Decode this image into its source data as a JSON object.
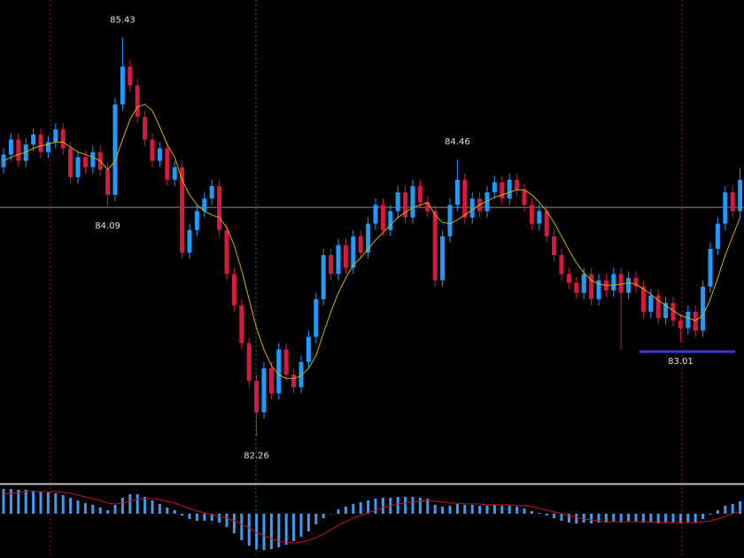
{
  "chart_data": {
    "type": "candlestick",
    "up_color": "#1e9bff",
    "down_color": "#d7193f",
    "ylim": [
      81.89,
      85.73
    ],
    "open": [
      84.4,
      84.5,
      84.62,
      84.45,
      84.58,
      84.66,
      84.52,
      84.6,
      84.7,
      84.55,
      84.32,
      84.48,
      84.4,
      84.52,
      84.38,
      84.18,
      84.9,
      85.2,
      85.05,
      84.8,
      84.62,
      84.45,
      84.55,
      84.3,
      84.4,
      83.72,
      83.9,
      84.05,
      84.15,
      84.25,
      83.9,
      83.55,
      83.3,
      83.0,
      82.7,
      82.45,
      82.8,
      82.6,
      82.95,
      82.75,
      82.65,
      82.85,
      83.05,
      83.35,
      83.7,
      83.55,
      83.78,
      83.6,
      83.85,
      83.72,
      83.95,
      84.1,
      83.9,
      84.05,
      84.2,
      84.0,
      84.25,
      84.12,
      84.05,
      83.5,
      83.85,
      84.1,
      84.3,
      84.0,
      84.15,
      84.05,
      84.2,
      84.28,
      84.15,
      84.3,
      84.22,
      84.1,
      83.95,
      84.05,
      83.85,
      83.7,
      83.55,
      83.48,
      83.4,
      83.55,
      83.35,
      83.5,
      83.42,
      83.55,
      83.4,
      83.52,
      83.45,
      83.25,
      83.38,
      83.2,
      83.32,
      83.18,
      83.12,
      83.25,
      83.1,
      83.45,
      83.75,
      83.95,
      84.2,
      84.05
    ],
    "high": [
      84.55,
      84.67,
      84.67,
      84.63,
      84.71,
      84.71,
      84.65,
      84.75,
      84.75,
      84.6,
      84.53,
      84.53,
      84.57,
      84.57,
      84.43,
      84.95,
      85.43,
      85.25,
      85.1,
      84.85,
      84.67,
      84.6,
      84.6,
      84.45,
      84.45,
      83.95,
      84.1,
      84.2,
      84.3,
      84.3,
      83.95,
      83.6,
      83.35,
      83.05,
      82.75,
      82.85,
      82.85,
      83.0,
      83.0,
      82.8,
      82.9,
      83.1,
      83.4,
      83.75,
      83.75,
      83.83,
      83.83,
      83.9,
      83.9,
      84.0,
      84.15,
      84.15,
      84.1,
      84.25,
      84.25,
      84.3,
      84.3,
      84.17,
      84.1,
      83.9,
      84.15,
      84.46,
      84.35,
      84.2,
      84.2,
      84.25,
      84.33,
      84.33,
      84.35,
      84.35,
      84.27,
      84.15,
      84.1,
      84.1,
      83.9,
      83.75,
      83.6,
      83.53,
      83.6,
      83.6,
      83.55,
      83.55,
      83.6,
      83.6,
      83.57,
      83.57,
      83.5,
      83.43,
      83.43,
      83.37,
      83.37,
      83.23,
      83.3,
      83.3,
      83.5,
      83.8,
      84.0,
      84.25,
      84.25,
      84.39
    ],
    "low": [
      84.35,
      84.45,
      84.4,
      84.4,
      84.53,
      84.47,
      84.47,
      84.55,
      84.5,
      84.27,
      84.27,
      84.35,
      84.35,
      84.33,
      84.09,
      84.13,
      84.85,
      85.0,
      84.75,
      84.57,
      84.4,
      84.4,
      84.25,
      84.25,
      83.67,
      83.67,
      83.85,
      84.0,
      84.1,
      83.85,
      83.5,
      83.25,
      82.95,
      82.65,
      82.26,
      82.4,
      82.55,
      82.55,
      82.7,
      82.6,
      82.6,
      82.8,
      83.0,
      83.3,
      83.5,
      83.5,
      83.55,
      83.55,
      83.67,
      83.67,
      83.9,
      83.85,
      83.85,
      84.0,
      83.95,
      83.95,
      84.07,
      84.0,
      83.45,
      83.45,
      83.8,
      84.05,
      83.95,
      83.95,
      84.0,
      84.0,
      84.15,
      84.1,
      84.1,
      84.17,
      84.05,
      83.9,
      83.9,
      83.8,
      83.65,
      83.5,
      83.43,
      83.35,
      83.35,
      83.3,
      83.3,
      83.37,
      83.37,
      82.95,
      83.35,
      83.4,
      83.2,
      83.2,
      83.15,
      83.15,
      83.13,
      83.01,
      83.07,
      83.05,
      83.05,
      83.4,
      83.7,
      83.9,
      84.0,
      84.0
    ],
    "close": [
      84.5,
      84.62,
      84.45,
      84.58,
      84.66,
      84.52,
      84.6,
      84.7,
      84.55,
      84.32,
      84.48,
      84.4,
      84.52,
      84.38,
      84.18,
      84.9,
      85.2,
      85.05,
      84.8,
      84.62,
      84.45,
      84.55,
      84.3,
      84.4,
      83.72,
      83.9,
      84.05,
      84.15,
      84.25,
      83.9,
      83.55,
      83.3,
      83.0,
      82.7,
      82.45,
      82.8,
      82.6,
      82.95,
      82.75,
      82.65,
      82.85,
      83.05,
      83.35,
      83.7,
      83.55,
      83.78,
      83.6,
      83.85,
      83.72,
      83.95,
      84.1,
      83.9,
      84.05,
      84.2,
      84.0,
      84.25,
      84.12,
      84.05,
      83.5,
      83.85,
      84.1,
      84.3,
      84.0,
      84.15,
      84.05,
      84.2,
      84.28,
      84.15,
      84.3,
      84.22,
      84.1,
      83.95,
      84.05,
      83.85,
      83.7,
      83.55,
      83.48,
      83.4,
      83.55,
      83.35,
      83.5,
      83.42,
      83.55,
      83.4,
      83.52,
      83.45,
      83.25,
      83.38,
      83.2,
      83.32,
      83.18,
      83.12,
      83.25,
      83.1,
      83.45,
      83.75,
      83.95,
      84.2,
      84.05,
      84.3
    ],
    "ma": {
      "color": "#d4b000",
      "values": [
        84.45,
        84.48,
        84.5,
        84.52,
        84.55,
        84.57,
        84.58,
        84.6,
        84.6,
        84.56,
        84.52,
        84.5,
        84.48,
        84.45,
        84.38,
        84.45,
        84.62,
        84.78,
        84.88,
        84.9,
        84.85,
        84.72,
        84.58,
        84.48,
        84.3,
        84.18,
        84.1,
        84.05,
        84.02,
        84.0,
        83.92,
        83.78,
        83.58,
        83.35,
        83.12,
        82.95,
        82.82,
        82.75,
        82.72,
        82.72,
        82.74,
        82.8,
        82.9,
        83.08,
        83.25,
        83.4,
        83.52,
        83.62,
        83.68,
        83.75,
        83.82,
        83.88,
        83.94,
        84.0,
        84.04,
        84.08,
        84.1,
        84.12,
        84.02,
        83.96,
        83.95,
        83.98,
        84.02,
        84.06,
        84.1,
        84.13,
        84.16,
        84.18,
        84.2,
        84.22,
        84.22,
        84.18,
        84.12,
        84.05,
        83.96,
        83.85,
        83.74,
        83.64,
        83.56,
        83.5,
        83.47,
        83.46,
        83.46,
        83.47,
        83.48,
        83.47,
        83.43,
        83.39,
        83.34,
        83.3,
        83.26,
        83.22,
        83.2,
        83.18,
        83.22,
        83.35,
        83.52,
        83.7,
        83.85,
        84.0
      ]
    },
    "hline": {
      "value": 84.08,
      "color": "#8a8a8a"
    },
    "annotations": [
      {
        "text": "85.43",
        "index": 16,
        "side": "high"
      },
      {
        "text": "84.09",
        "index": 14,
        "side": "low"
      },
      {
        "text": "82.26",
        "index": 34,
        "side": "low"
      },
      {
        "text": "84.46",
        "index": 61,
        "side": "high"
      },
      {
        "text": "83.01",
        "index": 91,
        "side": "low"
      }
    ],
    "macd": {
      "ylim": [
        -0.48,
        0.32
      ],
      "histogram": {
        "color": "#3d9cf0",
        "values": [
          0.28,
          0.28,
          0.27,
          0.27,
          0.26,
          0.25,
          0.24,
          0.23,
          0.21,
          0.18,
          0.15,
          0.12,
          0.1,
          0.07,
          0.04,
          0.1,
          0.18,
          0.22,
          0.22,
          0.19,
          0.15,
          0.11,
          0.07,
          0.04,
          -0.02,
          -0.06,
          -0.08,
          -0.08,
          -0.08,
          -0.1,
          -0.15,
          -0.22,
          -0.3,
          -0.36,
          -0.4,
          -0.41,
          -0.4,
          -0.38,
          -0.35,
          -0.31,
          -0.26,
          -0.2,
          -0.12,
          -0.05,
          0.0,
          0.05,
          0.08,
          0.11,
          0.13,
          0.15,
          0.17,
          0.18,
          0.18,
          0.19,
          0.19,
          0.19,
          0.18,
          0.17,
          0.1,
          0.08,
          0.09,
          0.11,
          0.1,
          0.1,
          0.09,
          0.09,
          0.1,
          0.09,
          0.09,
          0.08,
          0.06,
          0.03,
          0.01,
          -0.02,
          -0.05,
          -0.08,
          -0.1,
          -0.11,
          -0.1,
          -0.11,
          -0.1,
          -0.1,
          -0.09,
          -0.1,
          -0.09,
          -0.09,
          -0.1,
          -0.1,
          -0.11,
          -0.1,
          -0.1,
          -0.11,
          -0.1,
          -0.1,
          -0.06,
          -0.01,
          0.04,
          0.09,
          0.11,
          0.14
        ]
      },
      "signal": {
        "color": "#c81020",
        "values": [
          0.22,
          0.23,
          0.24,
          0.25,
          0.25,
          0.25,
          0.25,
          0.25,
          0.24,
          0.23,
          0.21,
          0.19,
          0.17,
          0.15,
          0.12,
          0.11,
          0.12,
          0.14,
          0.16,
          0.17,
          0.17,
          0.16,
          0.14,
          0.12,
          0.09,
          0.06,
          0.03,
          0.01,
          -0.01,
          -0.03,
          -0.05,
          -0.08,
          -0.12,
          -0.16,
          -0.21,
          -0.25,
          -0.28,
          -0.31,
          -0.32,
          -0.33,
          -0.32,
          -0.3,
          -0.27,
          -0.23,
          -0.18,
          -0.13,
          -0.09,
          -0.05,
          -0.02,
          0.01,
          0.04,
          0.07,
          0.09,
          0.11,
          0.12,
          0.13,
          0.14,
          0.15,
          0.14,
          0.13,
          0.12,
          0.12,
          0.11,
          0.11,
          0.11,
          0.1,
          0.1,
          0.1,
          0.1,
          0.09,
          0.09,
          0.08,
          0.06,
          0.04,
          0.02,
          0.0,
          -0.02,
          -0.04,
          -0.06,
          -0.07,
          -0.08,
          -0.09,
          -0.09,
          -0.09,
          -0.09,
          -0.09,
          -0.09,
          -0.09,
          -0.1,
          -0.1,
          -0.1,
          -0.1,
          -0.1,
          -0.1,
          -0.09,
          -0.08,
          -0.06,
          -0.03,
          0.0,
          0.03
        ]
      }
    }
  }
}
